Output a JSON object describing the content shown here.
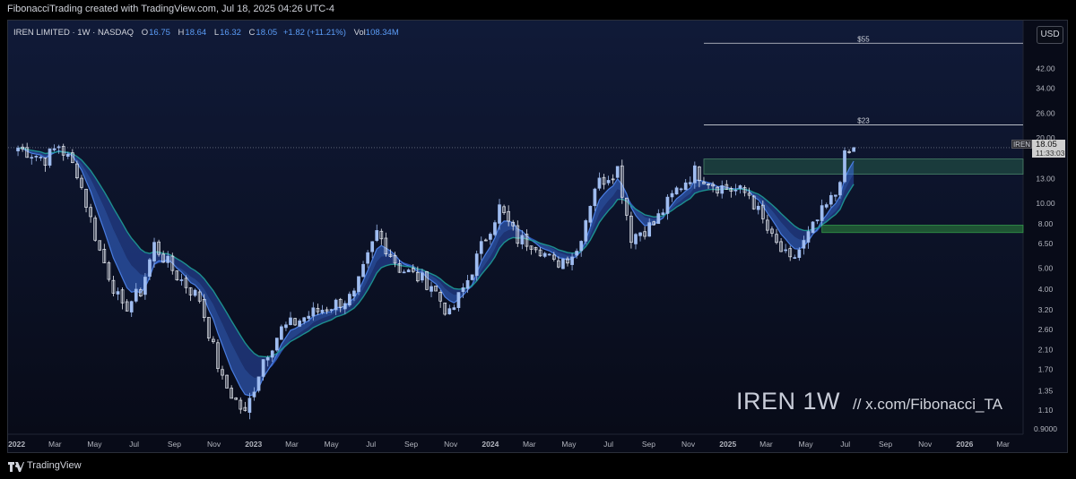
{
  "header": {
    "credit": "FibonacciTrading created with TradingView.com, Jul 18, 2025 04:26 UTC-4"
  },
  "legend": {
    "symbol": "IREN LIMITED · 1W · NASDAQ",
    "open_label": "O",
    "open": "16.75",
    "high_label": "H",
    "high": "18.64",
    "low_label": "L",
    "low": "16.32",
    "close_label": "C",
    "close": "18.05",
    "change": "+1.82 (+11.21%)",
    "vol_label": "Vol",
    "volume": "108.34M"
  },
  "currency": "USD",
  "watermark": {
    "title": "IREN 1W",
    "handle": "//  x.com/Fibonacci_TA"
  },
  "last_price_tag": {
    "ticker": "IREN",
    "price": "18.05",
    "countdown": "11:33:03"
  },
  "footer": {
    "logo_text": "TradingView"
  },
  "colors": {
    "background": "#0b1022",
    "candle_up": "#9fbcf0",
    "candle_down": "#e4e8f0",
    "ribbon_dark": "#2c4fb0",
    "ribbon_mid": "#3b6fe0",
    "ribbon_teal": "#1e9c96",
    "zone_supply": "#2b6b4f",
    "zone_support": "#2e8a3d",
    "level_line": "#d1d4dc",
    "accent": "#5b9cf6"
  },
  "chart_data": {
    "type": "candlestick",
    "symbol": "IREN",
    "timeframe": "1W",
    "y_scale": "log",
    "ylim": [
      0.85,
      70
    ],
    "y_ticks": [
      "42.00",
      "34.00",
      "26.00",
      "20.00",
      "13.00",
      "10.00",
      "8.00",
      "6.50",
      "5.00",
      "4.00",
      "3.20",
      "2.60",
      "2.10",
      "1.70",
      "1.35",
      "1.10",
      "0.9000"
    ],
    "x_ticks": [
      "2022",
      "Mar",
      "May",
      "Jul",
      "Sep",
      "Nov",
      "2023",
      "Mar",
      "May",
      "Jul",
      "Sep",
      "Nov",
      "2024",
      "Mar",
      "May",
      "Jul",
      "Sep",
      "Nov",
      "2025",
      "Mar",
      "May",
      "Jul",
      "Sep",
      "Nov",
      "2026",
      "Mar"
    ],
    "levels": [
      {
        "label": "$55",
        "value": 55
      },
      {
        "label": "$23",
        "value": 23
      }
    ],
    "last_price": 18.05,
    "zones": [
      {
        "name": "upper-zone",
        "low": 13.6,
        "high": 16.0
      },
      {
        "name": "lower-zone",
        "low": 7.3,
        "high": 7.9
      }
    ],
    "anchors": [
      {
        "date": "2022-01-03",
        "close": 18.0
      },
      {
        "date": "2022-02-14",
        "close": 16.0
      },
      {
        "date": "2022-03-07",
        "close": 18.5
      },
      {
        "date": "2022-04-04",
        "close": 14.0
      },
      {
        "date": "2022-05-09",
        "close": 6.0
      },
      {
        "date": "2022-06-13",
        "close": 3.2
      },
      {
        "date": "2022-07-11",
        "close": 3.9
      },
      {
        "date": "2022-08-01",
        "close": 6.4
      },
      {
        "date": "2022-09-05",
        "close": 4.6
      },
      {
        "date": "2022-10-10",
        "close": 3.6
      },
      {
        "date": "2022-11-14",
        "close": 1.5
      },
      {
        "date": "2022-12-19",
        "close": 1.05
      },
      {
        "date": "2023-01-16",
        "close": 1.9
      },
      {
        "date": "2023-02-13",
        "close": 2.6
      },
      {
        "date": "2023-04-03",
        "close": 3.1
      },
      {
        "date": "2023-06-05",
        "close": 3.7
      },
      {
        "date": "2023-07-10",
        "close": 7.3
      },
      {
        "date": "2023-08-14",
        "close": 5.0
      },
      {
        "date": "2023-10-02",
        "close": 4.2
      },
      {
        "date": "2023-10-30",
        "close": 3.0
      },
      {
        "date": "2023-11-27",
        "close": 4.4
      },
      {
        "date": "2023-12-25",
        "close": 7.0
      },
      {
        "date": "2024-01-15",
        "close": 9.5
      },
      {
        "date": "2024-02-12",
        "close": 6.8
      },
      {
        "date": "2024-03-11",
        "close": 6.5
      },
      {
        "date": "2024-04-08",
        "close": 5.2
      },
      {
        "date": "2024-05-13",
        "close": 6.0
      },
      {
        "date": "2024-06-10",
        "close": 12.0
      },
      {
        "date": "2024-07-15",
        "close": 14.5
      },
      {
        "date": "2024-08-05",
        "close": 7.0
      },
      {
        "date": "2024-09-09",
        "close": 8.0
      },
      {
        "date": "2024-10-14",
        "close": 11.5
      },
      {
        "date": "2024-11-11",
        "close": 14.0
      },
      {
        "date": "2024-12-16",
        "close": 12.0
      },
      {
        "date": "2025-02-03",
        "close": 11.0
      },
      {
        "date": "2025-03-10",
        "close": 6.8
      },
      {
        "date": "2025-04-07",
        "close": 5.3
      },
      {
        "date": "2025-04-28",
        "close": 6.5
      },
      {
        "date": "2025-05-26",
        "close": 9.0
      },
      {
        "date": "2025-06-16",
        "close": 11.0
      },
      {
        "date": "2025-06-30",
        "close": 16.2
      },
      {
        "date": "2025-07-14",
        "close": 18.05
      }
    ]
  }
}
